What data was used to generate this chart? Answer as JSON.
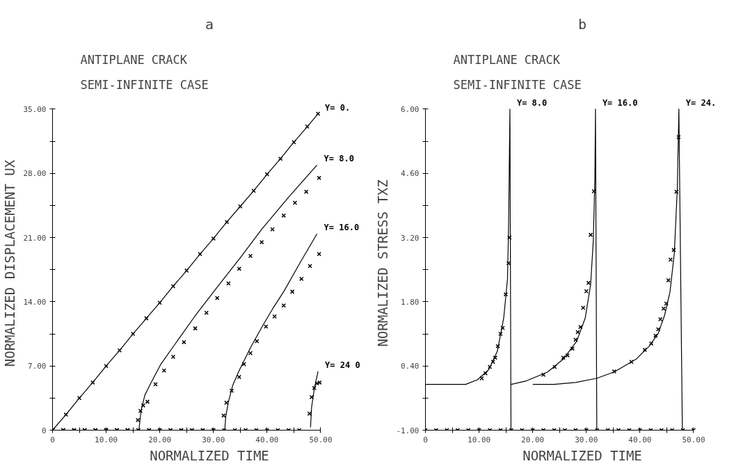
{
  "chart_data": [
    {
      "type": "line",
      "annotations": [
        "a"
      ],
      "title": "ANTIPLANE CRACK",
      "subtitle": "SEMI-INFINITE CASE",
      "xlabel": "NORMALIZED TIME",
      "ylabel": "NORMALIZED DISPLACEMENT UX",
      "xlim": [
        0,
        50
      ],
      "ylim": [
        0,
        35
      ],
      "xticks": [
        {
          "value": 0,
          "label": "0"
        },
        {
          "value": 5,
          "label": null
        },
        {
          "value": 10,
          "label": "10.00"
        },
        {
          "value": 15,
          "label": null
        },
        {
          "value": 20,
          "label": "20.00"
        },
        {
          "value": 25,
          "label": null
        },
        {
          "value": 30,
          "label": "30.00"
        },
        {
          "value": 35,
          "label": null
        },
        {
          "value": 40,
          "label": "40.00"
        },
        {
          "value": 45,
          "label": null
        },
        {
          "value": 50,
          "label": "50.00"
        }
      ],
      "yticks": [
        {
          "value": 0,
          "label": "0"
        },
        {
          "value": 3.5,
          "label": null
        },
        {
          "value": 7,
          "label": "7.00"
        },
        {
          "value": 10.5,
          "label": null
        },
        {
          "value": 14,
          "label": "14.00"
        },
        {
          "value": 17.5,
          "label": null
        },
        {
          "value": 21,
          "label": "21.00"
        },
        {
          "value": 24.5,
          "label": null
        },
        {
          "value": 28,
          "label": "28.00"
        },
        {
          "value": 31.5,
          "label": null
        },
        {
          "value": 35,
          "label": "35.00"
        }
      ],
      "series": [
        {
          "name": "Y= 0.",
          "marker": "cross",
          "color": "#000000",
          "x": [
            0,
            2.5,
            5,
            7.5,
            10,
            12.5,
            15,
            17.5,
            20,
            22.5,
            25,
            27.5,
            30,
            32.5,
            35,
            37.5,
            40,
            42.5,
            45,
            47.5,
            49.5
          ],
          "values": [
            0,
            1.7,
            3.5,
            5.2,
            7.0,
            8.7,
            10.5,
            12.2,
            13.9,
            15.7,
            17.4,
            19.2,
            20.9,
            22.7,
            24.4,
            26.1,
            27.9,
            29.6,
            31.4,
            33.1,
            34.5
          ]
        },
        {
          "name": "Y= 8.0",
          "marker": "none",
          "color": "#000000",
          "x": [
            16.1,
            16.5,
            17.2,
            18.3,
            20.2,
            22.5,
            26.5,
            30.7,
            35,
            39,
            44,
            49.3
          ],
          "values": [
            0,
            2.1,
            3.8,
            5.1,
            7.2,
            9.1,
            12.4,
            15.6,
            18.8,
            21.9,
            25.4,
            28.9
          ]
        },
        {
          "type": "scatter",
          "marker": "cross",
          "color": "#000000",
          "x": [
            0,
            2,
            4,
            6,
            8,
            10,
            12,
            14,
            15.9,
            16.4,
            16.9,
            17.7,
            19.2,
            20.8,
            22.5,
            24.5,
            26.6,
            28.7,
            30.7,
            32.8,
            34.8,
            36.9,
            39,
            41,
            43.1,
            45.2,
            47.3,
            49.7
          ],
          "values": [
            0,
            0,
            0,
            0,
            0,
            0,
            0,
            0,
            1.1,
            2.1,
            2.7,
            3.1,
            5.0,
            6.5,
            8.0,
            9.6,
            11.1,
            12.8,
            14.4,
            16.0,
            17.6,
            19.0,
            20.5,
            21.9,
            23.4,
            24.8,
            26.0,
            27.5
          ]
        },
        {
          "name": "Y= 16.0",
          "marker": "none",
          "color": "#000000",
          "x": [
            32.1,
            32.3,
            32.8,
            33.6,
            34.8,
            37,
            39,
            41,
            43.1,
            46,
            49.3
          ],
          "values": [
            0,
            1.5,
            3.1,
            4.9,
            6.5,
            9.1,
            11.2,
            13.2,
            15.1,
            18.1,
            21.4
          ]
        },
        {
          "type": "scatter",
          "marker": "cross",
          "color": "#000000",
          "x": [
            0,
            2,
            4,
            6,
            8,
            10,
            12,
            14,
            16,
            18,
            20,
            22,
            24,
            26,
            28,
            30,
            31.9,
            32.4,
            33.4,
            34.8,
            35.7,
            36.9,
            38.1,
            39.8,
            41.4,
            43.1,
            44.7,
            46.4,
            48,
            49.7
          ],
          "values": [
            0,
            0,
            0,
            0,
            0,
            0,
            0,
            0,
            0,
            0,
            0,
            0,
            0,
            0,
            0,
            0,
            1.6,
            3.0,
            4.3,
            5.8,
            7.2,
            8.4,
            9.7,
            11.3,
            12.4,
            13.6,
            15.1,
            16.5,
            17.9,
            19.2
          ]
        },
        {
          "name": "Y= 24 0",
          "marker": "none",
          "color": "#000000",
          "x": [
            48.1,
            48.3,
            48.8,
            49.5
          ],
          "values": [
            0.3,
            2.5,
            4.5,
            6.4
          ]
        },
        {
          "type": "scatter",
          "marker": "cross",
          "color": "#000000",
          "x": [
            0,
            2,
            4,
            6,
            8,
            10,
            12,
            14,
            16,
            18,
            20,
            22,
            24,
            26,
            28,
            30,
            32,
            34,
            36,
            38,
            40,
            42,
            44,
            46,
            47.9,
            48.3,
            48.8,
            49.3,
            49.8
          ],
          "values": [
            0,
            0,
            0,
            0,
            0,
            0,
            0,
            0,
            0,
            0,
            0,
            0,
            0,
            0,
            0,
            0,
            0,
            0,
            0,
            0,
            0,
            0,
            0,
            0,
            1.8,
            3.6,
            4.6,
            5.1,
            5.2
          ]
        }
      ]
    },
    {
      "type": "line",
      "annotations": [
        "b"
      ],
      "title": "ANTIPLANE CRACK",
      "subtitle": "SEMI-INFINITE CASE",
      "xlabel": "NORMALIZED TIME",
      "ylabel": "NORMALIZED STRESS TXZ",
      "xlim": [
        0,
        50
      ],
      "ylim": [
        -1,
        6
      ],
      "xticks": [
        {
          "value": 0,
          "label": "0"
        },
        {
          "value": 5,
          "label": null
        },
        {
          "value": 10,
          "label": "10.00"
        },
        {
          "value": 15,
          "label": null
        },
        {
          "value": 20,
          "label": "20.00"
        },
        {
          "value": 25,
          "label": null
        },
        {
          "value": 30,
          "label": "30.00"
        },
        {
          "value": 35,
          "label": null
        },
        {
          "value": 40,
          "label": "40.00"
        },
        {
          "value": 45,
          "label": null
        },
        {
          "value": 50,
          "label": "50.00"
        }
      ],
      "yticks": [
        {
          "value": -1,
          "label": "-1.00"
        },
        {
          "value": -0.3,
          "label": null
        },
        {
          "value": 0.4,
          "label": "0.40"
        },
        {
          "value": 1.1,
          "label": null
        },
        {
          "value": 1.8,
          "label": "1.80"
        },
        {
          "value": 2.5,
          "label": null
        },
        {
          "value": 3.2,
          "label": "3.20"
        },
        {
          "value": 3.9,
          "label": null
        },
        {
          "value": 4.6,
          "label": "4.60"
        },
        {
          "value": 5.3,
          "label": null
        },
        {
          "value": 6,
          "label": "6.00"
        }
      ],
      "series": [
        {
          "type": "scatter",
          "marker": "cross",
          "color": "#000000",
          "x": [
            0,
            2,
            4,
            6,
            8,
            10,
            12,
            14,
            16,
            18,
            20,
            22,
            24,
            26,
            28,
            30,
            32,
            34,
            36,
            38,
            40,
            42,
            44,
            46,
            48,
            50
          ],
          "values": [
            -1,
            -1,
            -1,
            -1,
            -1,
            -1,
            -1,
            -1,
            -1,
            -1,
            -1,
            -1,
            -1,
            -1,
            -1,
            -1,
            -1,
            -1,
            -1,
            -1,
            -1,
            -1,
            -1,
            -1,
            -1,
            -1
          ]
        },
        {
          "name": "Y= 8.0",
          "marker": "none",
          "color": "#000000",
          "x": [
            0,
            7.5,
            9.7,
            11.8,
            13.4,
            14.6,
            15.3,
            15.5,
            15.75,
            15.95
          ],
          "values": [
            0,
            0,
            0.1,
            0.32,
            0.72,
            1.45,
            2.3,
            3.43,
            6.0,
            -1
          ]
        },
        {
          "type": "scatter",
          "marker": "cross",
          "color": "#000000",
          "x": [
            10.5,
            11.2,
            12.0,
            12.6,
            13.0,
            13.5,
            14.0,
            14.4,
            14.97,
            15.5,
            15.67
          ],
          "values": [
            0.13,
            0.24,
            0.38,
            0.49,
            0.58,
            0.83,
            1.1,
            1.23,
            1.96,
            2.64,
            3.2
          ]
        },
        {
          "name": "Y= 16.0",
          "marker": "none",
          "color": "#000000",
          "x": [
            15.95,
            16,
            18.7,
            22.8,
            25.7,
            28.2,
            29.8,
            30.8,
            31.3,
            31.6,
            31.7,
            31.95
          ],
          "values": [
            0,
            0,
            0.07,
            0.27,
            0.55,
            0.94,
            1.45,
            2.18,
            3.14,
            4.55,
            6.0,
            -1
          ]
        },
        {
          "type": "scatter",
          "marker": "cross",
          "color": "#000000",
          "x": [
            22.0,
            24.1,
            25.7,
            26.5,
            27.4,
            28.0,
            28.4,
            28.9,
            29.4,
            30.0,
            30.4,
            30.8,
            31.4
          ],
          "values": [
            0.21,
            0.38,
            0.58,
            0.63,
            0.78,
            0.97,
            1.14,
            1.25,
            1.67,
            2.03,
            2.21,
            3.26,
            4.21
          ]
        },
        {
          "name": "Y= 24.",
          "marker": "none",
          "color": "#000000",
          "x": [
            20,
            24,
            28,
            31.9,
            35.2,
            39.3,
            41.7,
            43.4,
            44.6,
            45.6,
            46.4,
            46.96,
            47.25,
            47.9
          ],
          "values": [
            0,
            0,
            0.04,
            0.13,
            0.27,
            0.55,
            0.83,
            1.11,
            1.51,
            2.02,
            2.86,
            4.27,
            6.0,
            -1
          ]
        },
        {
          "type": "scatter",
          "marker": "cross",
          "color": "#000000",
          "x": [
            35.2,
            38.4,
            40.9,
            42.1,
            42.9,
            43.4,
            43.8,
            44.4,
            44.9,
            45.3,
            45.7,
            46.3,
            46.8,
            47.2
          ],
          "values": [
            0.28,
            0.49,
            0.75,
            0.89,
            1.06,
            1.2,
            1.42,
            1.65,
            1.76,
            2.27,
            2.72,
            2.93,
            4.2,
            5.39
          ]
        }
      ]
    }
  ]
}
